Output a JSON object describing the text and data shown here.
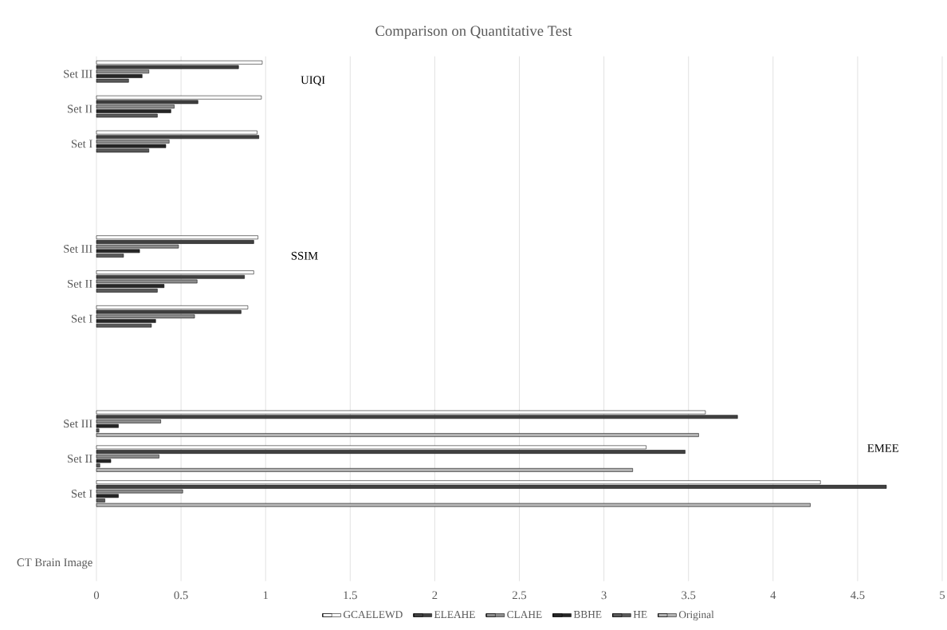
{
  "chart_data": {
    "type": "bar",
    "orientation": "horizontal",
    "title": "Comparison on Quantitative Test",
    "categories": [
      "Set III",
      "Set II",
      "Set I",
      null,
      null,
      "Set III",
      "Set II",
      "Set I",
      null,
      null,
      "Set III",
      "Set II",
      "Set I",
      null,
      "CT Brain Image"
    ],
    "series": [
      {
        "name": "GCAELEWD",
        "color": "#ffffff",
        "values": [
          0.98,
          0.975,
          0.95,
          null,
          null,
          0.955,
          0.93,
          0.895,
          null,
          null,
          3.6,
          3.25,
          4.28,
          null,
          null
        ]
      },
      {
        "name": "ELEAHE",
        "color": "#404040",
        "values": [
          0.84,
          0.6,
          0.96,
          null,
          null,
          0.93,
          0.875,
          0.855,
          null,
          null,
          3.79,
          3.48,
          4.67,
          null,
          null
        ]
      },
      {
        "name": "CLAHE",
        "color": "#8c8c8c",
        "values": [
          0.31,
          0.46,
          0.43,
          null,
          null,
          0.485,
          0.595,
          0.58,
          null,
          null,
          0.38,
          0.37,
          0.51,
          null,
          null
        ]
      },
      {
        "name": "BBHE",
        "color": "#262626",
        "values": [
          0.27,
          0.44,
          0.41,
          null,
          null,
          0.255,
          0.4,
          0.35,
          null,
          null,
          0.13,
          0.085,
          0.13,
          null,
          null
        ]
      },
      {
        "name": "HE",
        "color": "#595959",
        "values": [
          0.19,
          0.36,
          0.31,
          null,
          null,
          0.16,
          0.36,
          0.325,
          null,
          null,
          0.015,
          0.02,
          0.05,
          null,
          null
        ]
      },
      {
        "name": "Original",
        "color": "#b3b3b3",
        "values": [
          null,
          null,
          null,
          null,
          null,
          null,
          null,
          null,
          null,
          null,
          3.56,
          3.17,
          4.22,
          null,
          null
        ]
      }
    ],
    "xlim": [
      0,
      5
    ],
    "xticks": [
      0,
      0.5,
      1,
      1.5,
      2,
      2.5,
      3,
      3.5,
      4,
      4.5,
      5
    ],
    "annotations": [
      "UIQI",
      "SSIM",
      "EMEE"
    ],
    "grid": "x",
    "legend": "bottom"
  }
}
